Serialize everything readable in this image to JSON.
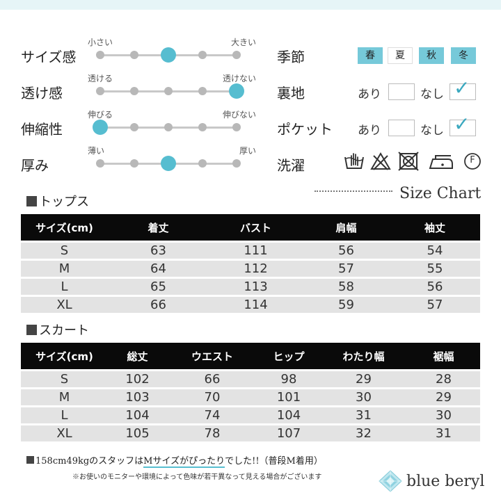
{
  "scales": [
    {
      "label": "サイズ感",
      "left": "小さい",
      "right": "大きい",
      "level": 3,
      "steps": 5
    },
    {
      "label": "透け感",
      "left": "透ける",
      "right": "透けない",
      "level": 5,
      "steps": 5
    },
    {
      "label": "伸縮性",
      "left": "伸びる",
      "right": "伸びない",
      "level": 1,
      "steps": 5
    },
    {
      "label": "厚み",
      "left": "薄い",
      "right": "厚い",
      "level": 3,
      "steps": 5
    }
  ],
  "attributes": {
    "season_label": "季節",
    "seasons": [
      {
        "label": "春",
        "selected": true
      },
      {
        "label": "夏",
        "selected": false
      },
      {
        "label": "秋",
        "selected": true
      },
      {
        "label": "冬",
        "selected": true
      }
    ],
    "lining_label": "裏地",
    "pocket_label": "ポケット",
    "yes_label": "あり",
    "no_label": "なし",
    "lining_checked": "なし",
    "pocket_checked": "なし",
    "wash_label": "洗濯",
    "care_icons": [
      "hand-wash-icon",
      "no-bleach-icon",
      "no-tumble-dry-icon",
      "iron-low-icon",
      "dry-clean-f-icon"
    ],
    "care_f_letter": "F",
    "accent_color": "#56bdd0"
  },
  "size_chart_title": "Size Chart",
  "tops": {
    "title": "トップス",
    "headers": [
      "サイズ(cm)",
      "着丈",
      "バスト",
      "肩幅",
      "袖丈"
    ],
    "rows": [
      [
        "S",
        "63",
        "111",
        "56",
        "54"
      ],
      [
        "M",
        "64",
        "112",
        "57",
        "55"
      ],
      [
        "L",
        "65",
        "113",
        "58",
        "56"
      ],
      [
        "XL",
        "66",
        "114",
        "59",
        "57"
      ]
    ]
  },
  "skirt": {
    "title": "スカート",
    "headers": [
      "サイズ(cm)",
      "総丈",
      "ウエスト",
      "ヒップ",
      "わたり幅",
      "裾幅"
    ],
    "rows": [
      [
        "S",
        "102",
        "66",
        "98",
        "29",
        "28"
      ],
      [
        "M",
        "103",
        "70",
        "101",
        "30",
        "29"
      ],
      [
        "L",
        "104",
        "74",
        "104",
        "31",
        "30"
      ],
      [
        "XL",
        "105",
        "78",
        "107",
        "32",
        "31"
      ]
    ]
  },
  "notes": {
    "staff_pre": "158cm49kgのスタッフは",
    "staff_highlight": "Mサイズがぴったり",
    "staff_post": "でした!!（普段M着用）",
    "monitor": "※お使いのモニターや環境によって色味が若干異なって見える場合がございます"
  },
  "brand": {
    "name": "blue beryl"
  }
}
